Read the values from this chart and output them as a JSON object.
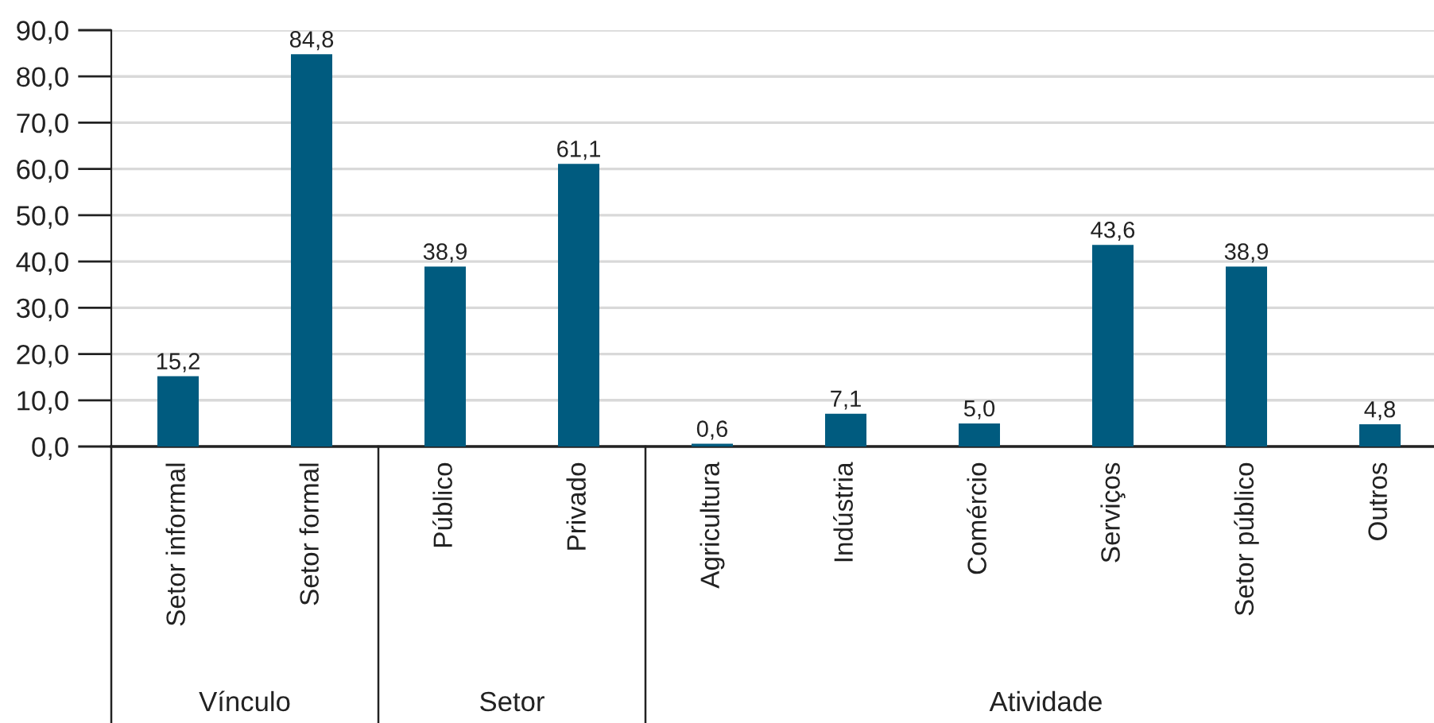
{
  "chart_data": {
    "type": "bar",
    "categories": [
      "Setor informal",
      "Setor formal",
      "Público",
      "Privado",
      "Agricultura",
      "Indústria",
      "Comércio",
      "Serviços",
      "Setor público",
      "Outros"
    ],
    "values": [
      15.2,
      84.8,
      38.9,
      61.1,
      0.6,
      7.1,
      5.0,
      43.6,
      38.9,
      4.8
    ],
    "value_labels": [
      "15,2",
      "84,8",
      "38,9",
      "61,1",
      "0,6",
      "7,1",
      "5,0",
      "43,6",
      "38,9",
      "4,8"
    ],
    "color": "#005b7f",
    "ylim": [
      0,
      90
    ],
    "yticks": [
      {
        "value": 0,
        "label": "0,0"
      },
      {
        "value": 10,
        "label": "10,0"
      },
      {
        "value": 20,
        "label": "20,0"
      },
      {
        "value": 30,
        "label": "30,0"
      },
      {
        "value": 40,
        "label": "40,0"
      },
      {
        "value": 50,
        "label": "50,0"
      },
      {
        "value": 60,
        "label": "60,0"
      },
      {
        "value": 70,
        "label": "70,0"
      },
      {
        "value": 80,
        "label": "80,0"
      },
      {
        "value": 90,
        "label": "90,0"
      }
    ],
    "grid": "y",
    "annotations": [
      "Vínculo",
      "Setor",
      "Atividade"
    ]
  }
}
